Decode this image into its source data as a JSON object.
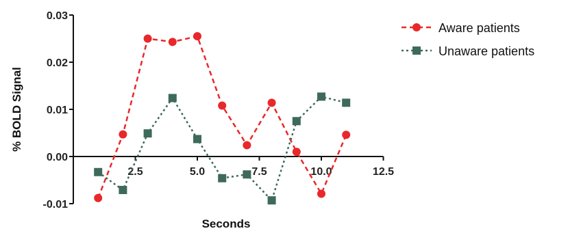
{
  "chart_data": {
    "type": "line",
    "xlabel": "Seconds",
    "ylabel": "% BOLD Signal",
    "xlim": [
      0,
      12.5
    ],
    "ylim": [
      -0.01,
      0.03
    ],
    "x_ticks": [
      "2.5",
      "5.0",
      "7.5",
      "10.0",
      "12.5"
    ],
    "y_ticks": [
      "0.03",
      "0.02",
      "0.01",
      "0.00",
      "-0.01"
    ],
    "legend_position": "top-right",
    "grid": false,
    "series": [
      {
        "name": "Aware patients",
        "color": "#e8282a",
        "marker": "circle",
        "line_style": "dashed",
        "x": [
          1,
          2,
          3,
          4,
          5,
          6,
          7,
          8,
          9,
          10,
          11
        ],
        "y": [
          -0.0088,
          0.0047,
          0.025,
          0.0243,
          0.0255,
          0.0108,
          0.0024,
          0.0114,
          0.001,
          -0.0079,
          0.0046
        ]
      },
      {
        "name": "Unaware patients",
        "color": "#3e6a5a",
        "marker": "square",
        "line_style": "dotted",
        "x": [
          1,
          2,
          3,
          4,
          5,
          6,
          7,
          8,
          9,
          10,
          11
        ],
        "y": [
          -0.0033,
          -0.0071,
          0.0049,
          0.0124,
          0.0037,
          -0.0046,
          -0.0038,
          -0.0093,
          0.0075,
          0.0127,
          0.0114
        ]
      }
    ]
  }
}
